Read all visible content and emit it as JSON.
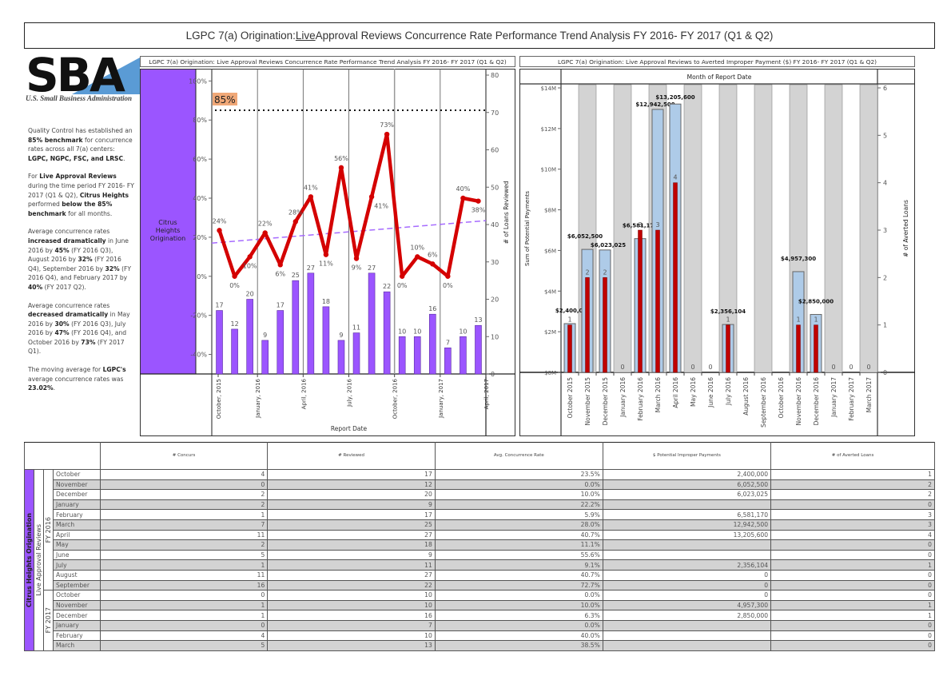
{
  "page": {
    "title_pre": "LGPC 7(a) Origination: ",
    "title_live": "Live",
    "title_post": " Approval Reviews Concurrence Rate Performance Trend Analysis FY 2016- FY 2017 (Q1 & Q2)"
  },
  "logo": {
    "letters": "SBA",
    "subtitle": "U.S. Small Business Administration"
  },
  "narrative": [
    [
      {
        "t": "Quality Control has established an "
      },
      {
        "b": "85% benchmark"
      },
      {
        "t": " for concurrence rates across all 7(a) centers: "
      },
      {
        "b": "LGPC, NGPC, FSC, and LRSC"
      },
      {
        "t": "."
      }
    ],
    [
      {
        "t": "For "
      },
      {
        "b": "Live Approval Reviews"
      },
      {
        "t": " during the time period FY 2016- FY 2017 (Q1 & Q2), "
      },
      {
        "b": "Citrus Heights"
      },
      {
        "t": " performed "
      },
      {
        "b": "below the 85% benchmark"
      },
      {
        "t": " for all months."
      }
    ],
    [
      {
        "t": "Average concurrence rates "
      },
      {
        "b": "increased dramatically"
      },
      {
        "t": " in June 2016 by "
      },
      {
        "b": "45%"
      },
      {
        "t": " (FY 2016 Q3), August 2016 by "
      },
      {
        "b": "32%"
      },
      {
        "t": " (FY 2016 Q4), September 2016 by "
      },
      {
        "b": "32%"
      },
      {
        "t": " (FY 2016 Q4), and February 2017 by "
      },
      {
        "b": "40%"
      },
      {
        "t": " (FY 2017 Q2)."
      }
    ],
    [
      {
        "t": "Average concurrence rates "
      },
      {
        "b": "decreased dramatically"
      },
      {
        "t": " in May 2016 by "
      },
      {
        "b": "30%"
      },
      {
        "t": " (FY 2016 Q3), July 2016 by "
      },
      {
        "b": "47%"
      },
      {
        "t": " (FY 2016 Q4), and October 2016 by "
      },
      {
        "b": "73%"
      },
      {
        "t": " (FY 2017 Q1)."
      }
    ],
    [
      {
        "t": " The moving average for "
      },
      {
        "b": "LGPC's"
      },
      {
        "t": " average concurrence rates was "
      },
      {
        "b": "23.02%"
      },
      {
        "t": "."
      }
    ]
  ],
  "colors": {
    "purple": "#9b55ff",
    "red": "#d40000",
    "trend": "#a66bff",
    "light_blue": "#aecbe8",
    "gray_band": "#d3d3d3",
    "benchmark_label_bg": "#f0a878"
  },
  "chart_data": [
    {
      "type": "line",
      "title": "LGPC 7(a) Origination: Live Approval Reviews Concurrence Rate Performance Trend Analysis FY 2016- FY 2017 (Q1 & Q2)",
      "row_label": "Citrus Heights Origination",
      "xlabel": "Report Date",
      "ylabel_left": "",
      "ylabel_right": "# of Loans Reviewed",
      "x": [
        "Oct 2015",
        "Nov 2015",
        "Dec 2015",
        "Jan 2016",
        "Feb 2016",
        "Mar 2016",
        "Apr 2016",
        "May 2016",
        "Jun 2016",
        "Jul 2016",
        "Aug 2016",
        "Sep 2016",
        "Oct 2016",
        "Nov 2016",
        "Dec 2016",
        "Jan 2017",
        "Feb 2017",
        "Mar 2017"
      ],
      "x_ticks": [
        "October, 2015",
        "January, 2016",
        "April, 2016",
        "July, 2016",
        "October, 2016",
        "January, 2017",
        "April, 2017"
      ],
      "y_left_ticks": [
        "100%",
        "80%",
        "60%",
        "40%",
        "20%",
        "0%",
        "-20%",
        "-40%"
      ],
      "y_left_range": [
        -0.5,
        1.03
      ],
      "y_right_ticks": [
        "80",
        "70",
        "60",
        "50",
        "40",
        "30",
        "20",
        "10",
        "0"
      ],
      "y_right_range": [
        0,
        80
      ],
      "series": [
        {
          "name": "Avg. Concurrence Rate",
          "kind": "line",
          "values": [
            0.235,
            0.0,
            0.1,
            0.222,
            0.059,
            0.28,
            0.407,
            0.111,
            0.556,
            0.091,
            0.407,
            0.727,
            0.0,
            0.1,
            0.063,
            0.0,
            0.4,
            0.385
          ],
          "labels": [
            "24%",
            "0%",
            "10%",
            "22%",
            "6%",
            "28%",
            "41%",
            "11%",
            "56%",
            "9%",
            "41%",
            "73%",
            "0%",
            "10%",
            "6%",
            "0%",
            "40%",
            "38%"
          ]
        },
        {
          "name": "# Reviewed",
          "kind": "bar",
          "axis": "right",
          "values": [
            17,
            12,
            20,
            9,
            17,
            25,
            27,
            18,
            9,
            11,
            27,
            22,
            10,
            10,
            16,
            7,
            10,
            13
          ]
        }
      ],
      "benchmark": {
        "value": 0.85,
        "label": "85%"
      },
      "trend_line": {
        "start": 0.17,
        "end": 0.285
      }
    },
    {
      "type": "bar",
      "title": "LGPC 7(a) Origination: Live Approval Reviews to Averted Improper Payment ($) FY 2016- FY 2017 (Q1 & Q2)",
      "header": "Month of Report Date",
      "ylabel_left": "Sum of Potential Payments",
      "ylabel_right": "# of Averted Loans",
      "categories": [
        "October 2015",
        "November 2015",
        "December 2015",
        "January 2016",
        "February 2016",
        "March 2016",
        "April 2016",
        "May 2016",
        "June 2016",
        "July 2016",
        "August 2016",
        "September 2016",
        "October 2016",
        "November 2016",
        "December 2016",
        "January 2017",
        "February 2017",
        "March 2017"
      ],
      "y_left_ticks": [
        "$14M",
        "$12M",
        "$10M",
        "$8M",
        "$6M",
        "$4M",
        "$2M",
        "$0M"
      ],
      "y_left_range": [
        0,
        14000000
      ],
      "y_right_ticks": [
        "6",
        "5",
        "4",
        "3",
        "2",
        "1",
        "0"
      ],
      "y_right_range": [
        0,
        6
      ],
      "series": [
        {
          "name": "$ Potential Improper Payments",
          "values": [
            2400000,
            6052500,
            6023025,
            null,
            6581170,
            12942500,
            13205600,
            null,
            null,
            2356104,
            0,
            0,
            0,
            4957300,
            2850000,
            null,
            null,
            null
          ],
          "labels": [
            "$2,400,000",
            "$6,052,500",
            "$6,023,025",
            "",
            "$6,581,170",
            "$12,942,500",
            "$13,205,600",
            "",
            "",
            "$2,356,104",
            "",
            "",
            "",
            "$4,957,300",
            "$2,850,000",
            "",
            "",
            ""
          ]
        },
        {
          "name": "# of Averted Loans",
          "values": [
            1,
            2,
            2,
            0,
            3,
            3,
            4,
            0,
            0,
            1,
            0,
            0,
            0,
            1,
            1,
            0,
            0,
            0
          ],
          "labels": [
            "1",
            "2",
            "2",
            "0",
            "3",
            "3",
            "4",
            "0",
            "0",
            "1",
            "",
            "",
            "",
            "1",
            "1",
            "0",
            "0",
            "0"
          ]
        }
      ]
    },
    {
      "type": "table",
      "row_groups": {
        "center": "Citrus Heights Origination",
        "review": "Live Approval Reviews"
      },
      "columns": [
        "# Concurs",
        "# Reviewed",
        "Avg. Concurrence Rate",
        "$ Potential Improper Payments",
        "# of Averted Loans"
      ],
      "years": [
        {
          "label": "FY 2016",
          "rows": [
            [
              "October",
              "4",
              "17",
              "23.5%",
              "2,400,000",
              "1"
            ],
            [
              "November",
              "0",
              "12",
              "0.0%",
              "6,052,500",
              "2"
            ],
            [
              "December",
              "2",
              "20",
              "10.0%",
              "6,023,025",
              "2"
            ],
            [
              "January",
              "2",
              "9",
              "22.2%",
              "",
              "0"
            ],
            [
              "February",
              "1",
              "17",
              "5.9%",
              "6,581,170",
              "3"
            ],
            [
              "March",
              "7",
              "25",
              "28.0%",
              "12,942,500",
              "3"
            ],
            [
              "April",
              "11",
              "27",
              "40.7%",
              "13,205,600",
              "4"
            ],
            [
              "May",
              "2",
              "18",
              "11.1%",
              "",
              "0"
            ],
            [
              "June",
              "5",
              "9",
              "55.6%",
              "",
              "0"
            ],
            [
              "July",
              "1",
              "11",
              "9.1%",
              "2,356,104",
              "1"
            ],
            [
              "August",
              "11",
              "27",
              "40.7%",
              "0",
              "0"
            ],
            [
              "September",
              "16",
              "22",
              "72.7%",
              "0",
              "0"
            ]
          ]
        },
        {
          "label": "FY 2017",
          "rows": [
            [
              "October",
              "0",
              "10",
              "0.0%",
              "0",
              "0"
            ],
            [
              "November",
              "1",
              "10",
              "10.0%",
              "4,957,300",
              "1"
            ],
            [
              "December",
              "1",
              "16",
              "6.3%",
              "2,850,000",
              "1"
            ],
            [
              "January",
              "0",
              "7",
              "0.0%",
              "",
              "0"
            ],
            [
              "February",
              "4",
              "10",
              "40.0%",
              "",
              "0"
            ],
            [
              "March",
              "5",
              "13",
              "38.5%",
              "",
              "0"
            ]
          ]
        }
      ]
    }
  ]
}
